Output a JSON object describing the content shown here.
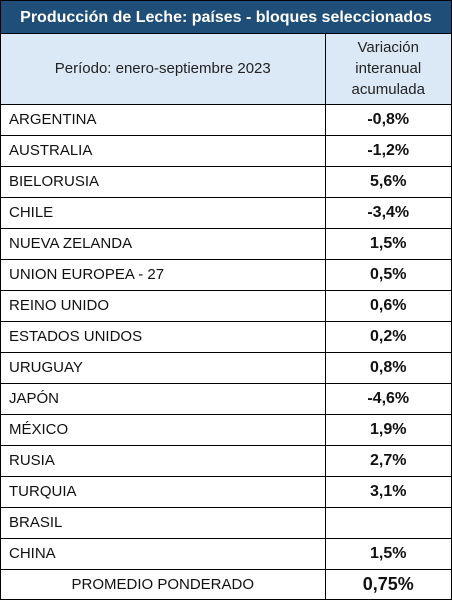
{
  "title": "Producción de Leche: países - bloques seleccionados",
  "header": {
    "period": "Período: enero-septiembre 2023",
    "variation_line1": "Variación",
    "variation_line2": "interanual",
    "variation_line3": "acumulada"
  },
  "colors": {
    "title_bg": "#1f4e78",
    "header_bg": "#dbe9f7",
    "negative": "#e00000",
    "positive": "#24a35a"
  },
  "chart_data": {
    "type": "table",
    "title": "Producción de Leche: países - bloques seleccionados",
    "columns": [
      "Período: enero-septiembre 2023",
      "Variación interanual acumulada"
    ],
    "rows": [
      {
        "country": "ARGENTINA",
        "value": "-0,8%",
        "sign": "neg"
      },
      {
        "country": "AUSTRALIA",
        "value": "-1,2%",
        "sign": "neg"
      },
      {
        "country": "BIELORUSIA",
        "value": "5,6%",
        "sign": "pos"
      },
      {
        "country": "CHILE",
        "value": "-3,4%",
        "sign": "neg"
      },
      {
        "country": "NUEVA ZELANDA",
        "value": "1,5%",
        "sign": "pos"
      },
      {
        "country": "UNION EUROPEA - 27",
        "value": "0,5%",
        "sign": "pos"
      },
      {
        "country": "REINO UNIDO",
        "value": "0,6%",
        "sign": "pos"
      },
      {
        "country": "ESTADOS UNIDOS",
        "value": "0,2%",
        "sign": "pos"
      },
      {
        "country": "URUGUAY",
        "value": "0,8%",
        "sign": "pos"
      },
      {
        "country": "JAPÓN",
        "value": "-4,6%",
        "sign": "neg"
      },
      {
        "country": "MÉXICO",
        "value": "1,9%",
        "sign": "pos"
      },
      {
        "country": "RUSIA",
        "value": "2,7%",
        "sign": "pos"
      },
      {
        "country": "TURQUIA",
        "value": "3,1%",
        "sign": "pos"
      },
      {
        "country": "BRASIL",
        "value": "",
        "sign": "none"
      },
      {
        "country": "CHINA",
        "value": "1,5%",
        "sign": "pos"
      }
    ],
    "footer": {
      "label": "PROMEDIO PONDERADO",
      "value": "0,75%",
      "sign": "pos"
    }
  }
}
